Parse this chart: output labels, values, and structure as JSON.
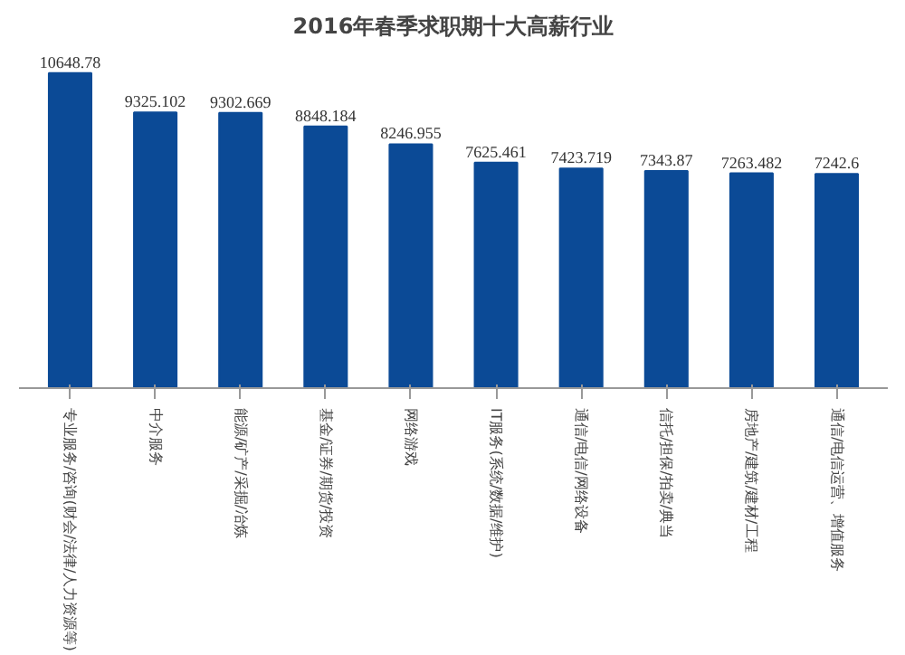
{
  "chart_data": {
    "type": "bar",
    "title": "2016年春季求职期十大高薪行业",
    "categories": [
      "专业服务/咨询(财会/法律/人力资源等)",
      "中介服务",
      "能源/矿产/采掘/冶炼",
      "基金/证券/期货/投资",
      "网络游戏",
      "IT服务(系统/数据/维护)",
      "通信/电信/网络设备",
      "信托/担保/拍卖/典当",
      "房地产/建筑/建材/工程",
      "通信/电信运营、增值服务"
    ],
    "values": [
      10648.78,
      9325.102,
      9302.669,
      8848.184,
      8246.955,
      7625.461,
      7423.719,
      7343.87,
      7263.482,
      7242.6
    ],
    "color": "#0b4a96",
    "data_labels": true,
    "grid": false,
    "tick_labels": "x"
  }
}
